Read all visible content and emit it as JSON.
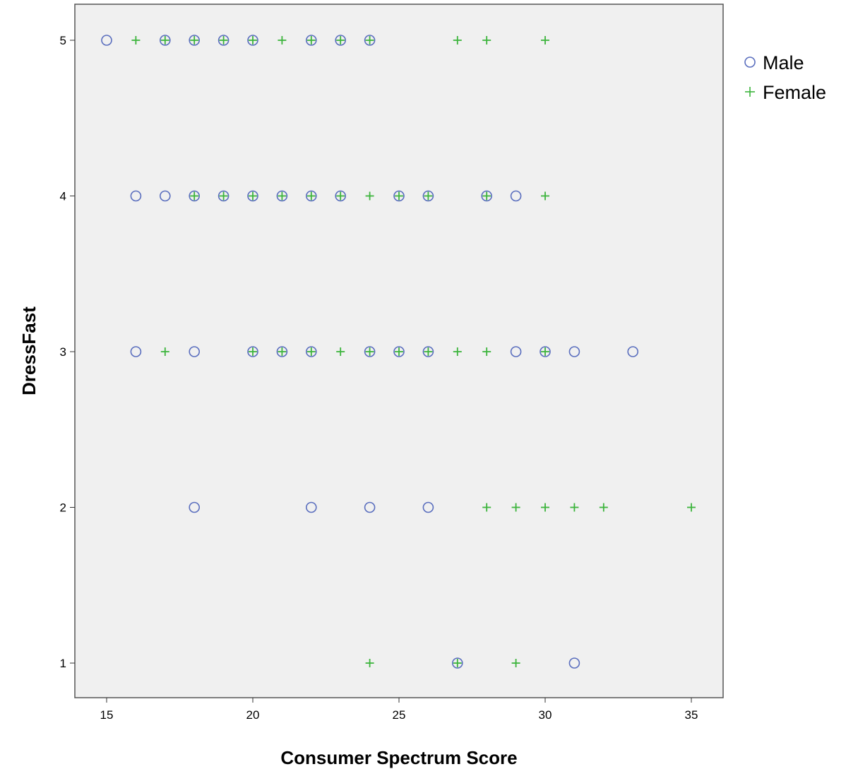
{
  "chart_data": {
    "type": "scatter",
    "title": "",
    "xlabel": "Consumer Spectrum Score",
    "ylabel": "DressFast",
    "xlim": [
      14,
      36
    ],
    "ylim": [
      0.8,
      5.25
    ],
    "xticks": [
      15,
      20,
      25,
      30,
      35
    ],
    "yticks": [
      1,
      2,
      3,
      4,
      5
    ],
    "grid": false,
    "legend": "right",
    "plot_background": "#f0f0f0",
    "series": [
      {
        "name": "Male",
        "marker": "circle",
        "color": "#5a6ebe",
        "points": [
          [
            15,
            5
          ],
          [
            17,
            5
          ],
          [
            18,
            5
          ],
          [
            19,
            5
          ],
          [
            20,
            5
          ],
          [
            22,
            5
          ],
          [
            23,
            5
          ],
          [
            24,
            5
          ],
          [
            16,
            4
          ],
          [
            17,
            4
          ],
          [
            18,
            4
          ],
          [
            19,
            4
          ],
          [
            20,
            4
          ],
          [
            21,
            4
          ],
          [
            22,
            4
          ],
          [
            23,
            4
          ],
          [
            25,
            4
          ],
          [
            26,
            4
          ],
          [
            28,
            4
          ],
          [
            29,
            4
          ],
          [
            16,
            3
          ],
          [
            18,
            3
          ],
          [
            20,
            3
          ],
          [
            21,
            3
          ],
          [
            22,
            3
          ],
          [
            24,
            3
          ],
          [
            25,
            3
          ],
          [
            26,
            3
          ],
          [
            29,
            3
          ],
          [
            30,
            3
          ],
          [
            31,
            3
          ],
          [
            33,
            3
          ],
          [
            18,
            2
          ],
          [
            22,
            2
          ],
          [
            24,
            2
          ],
          [
            26,
            2
          ],
          [
            27,
            1
          ],
          [
            31,
            1
          ]
        ]
      },
      {
        "name": "Female",
        "marker": "plus",
        "color": "#3cb43c",
        "points": [
          [
            16,
            5
          ],
          [
            17,
            5
          ],
          [
            18,
            5
          ],
          [
            19,
            5
          ],
          [
            20,
            5
          ],
          [
            21,
            5
          ],
          [
            22,
            5
          ],
          [
            23,
            5
          ],
          [
            24,
            5
          ],
          [
            27,
            5
          ],
          [
            28,
            5
          ],
          [
            30,
            5
          ],
          [
            18,
            4
          ],
          [
            19,
            4
          ],
          [
            20,
            4
          ],
          [
            21,
            4
          ],
          [
            22,
            4
          ],
          [
            23,
            4
          ],
          [
            24,
            4
          ],
          [
            25,
            4
          ],
          [
            26,
            4
          ],
          [
            28,
            4
          ],
          [
            30,
            4
          ],
          [
            17,
            3
          ],
          [
            20,
            3
          ],
          [
            21,
            3
          ],
          [
            22,
            3
          ],
          [
            23,
            3
          ],
          [
            24,
            3
          ],
          [
            25,
            3
          ],
          [
            26,
            3
          ],
          [
            27,
            3
          ],
          [
            28,
            3
          ],
          [
            30,
            3
          ],
          [
            28,
            2
          ],
          [
            29,
            2
          ],
          [
            30,
            2
          ],
          [
            31,
            2
          ],
          [
            32,
            2
          ],
          [
            35,
            2
          ],
          [
            24,
            1
          ],
          [
            27,
            1
          ],
          [
            29,
            1
          ]
        ]
      }
    ]
  }
}
